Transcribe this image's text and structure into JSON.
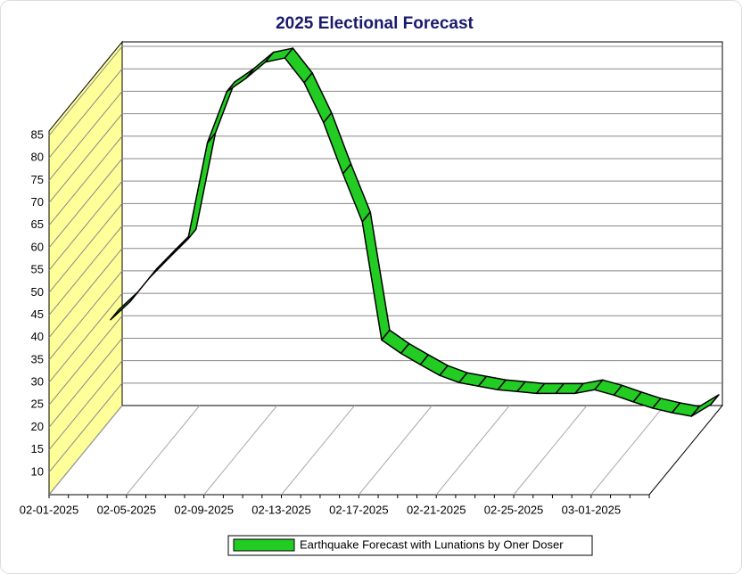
{
  "chart_data": {
    "type": "line3d",
    "title": "2025 Electional Forecast",
    "categories": [
      "02-01-2025",
      null,
      null,
      null,
      "02-05-2025",
      null,
      null,
      null,
      "02-09-2025",
      null,
      null,
      null,
      "02-13-2025",
      null,
      null,
      null,
      "02-17-2025",
      null,
      null,
      null,
      "02-21-2025",
      null,
      null,
      null,
      "02-25-2025",
      null,
      null,
      null,
      "03-01-2025",
      null,
      null,
      null
    ],
    "series": [
      {
        "name": "Earthquake Forecast with Lunations by Oner Doser",
        "color": "#22cc22",
        "values": [
          26.3,
          30.3,
          35.6,
          40,
          44.3,
          65.7,
          77.1,
          80.1,
          83.7,
          84.6,
          79.1,
          70.2,
          58.8,
          48.1,
          21.8,
          18.8,
          16.3,
          13.9,
          12.3,
          11.5,
          10.7,
          10.3,
          9.9,
          9.9,
          9.9,
          10.7,
          9.5,
          8,
          6.6,
          5.6,
          4.8,
          7.4
        ]
      }
    ],
    "ylim": [
      5,
      86
    ],
    "yticks": [
      10,
      15,
      20,
      25,
      30,
      35,
      40,
      45,
      50,
      55,
      60,
      65,
      70,
      75,
      80,
      85
    ],
    "grid": true,
    "legend": "bottom",
    "wall_color": "#ffff99"
  }
}
